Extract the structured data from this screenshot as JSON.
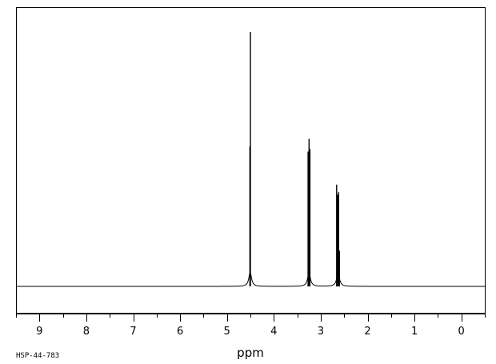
{
  "sample_id": "HSP-44-783",
  "chart_data": {
    "type": "line",
    "title": "",
    "xlabel": "ppm",
    "ylabel": "",
    "x_reversed": true,
    "xlim": [
      9.5,
      -0.5
    ],
    "ylim": [
      0,
      1
    ],
    "grid": false,
    "legend": "none",
    "major_ticks": [
      9,
      8,
      7,
      6,
      5,
      4,
      3,
      2,
      1,
      0
    ],
    "tick_labels": [
      "9",
      "8",
      "7",
      "6",
      "5",
      "4",
      "3",
      "2",
      "1",
      "0"
    ],
    "line_color": "#000000",
    "peaks": [
      {
        "group": "signal-4.5",
        "shift": 4.5,
        "intensity": 1.0
      },
      {
        "group": "signal-4.5",
        "shift": 4.51,
        "intensity": 0.55
      },
      {
        "group": "signal-3.2",
        "shift": 3.27,
        "intensity": 0.53
      },
      {
        "group": "signal-3.2",
        "shift": 3.25,
        "intensity": 0.58
      },
      {
        "group": "signal-3.2",
        "shift": 3.23,
        "intensity": 0.54
      },
      {
        "group": "signal-2.6",
        "shift": 2.66,
        "intensity": 0.4
      },
      {
        "group": "signal-2.6",
        "shift": 2.64,
        "intensity": 0.36
      },
      {
        "group": "signal-2.6",
        "shift": 2.62,
        "intensity": 0.37
      },
      {
        "group": "signal-2.6",
        "shift": 2.6,
        "intensity": 0.14
      }
    ]
  }
}
